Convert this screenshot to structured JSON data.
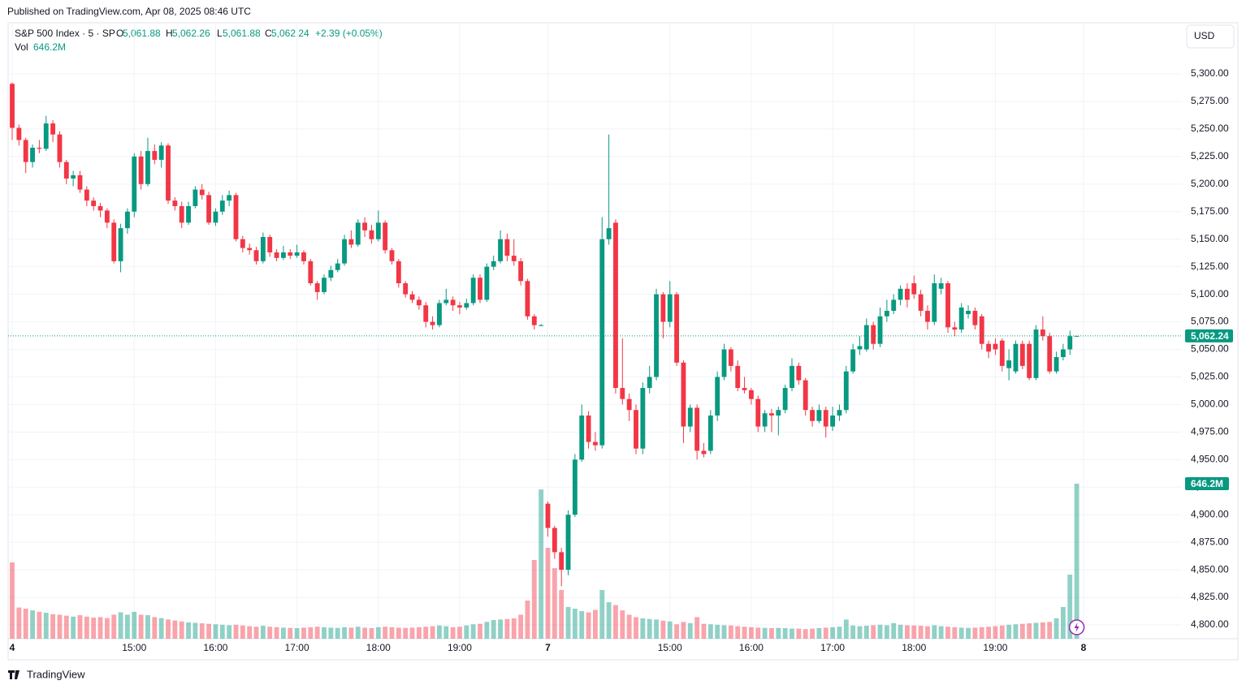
{
  "published": "Published on TradingView.com, Apr 08, 2025 08:46 UTC",
  "brand": "TradingView",
  "currency": "USD",
  "chart_data": {
    "type": "candlestick",
    "legend": {
      "symbol": "S&P 500 Index · 5 · SP",
      "open_key": "O",
      "open": "5,061.88",
      "high_key": "H",
      "high": "5,062.26",
      "low_key": "L",
      "low": "5,061.88",
      "close_key": "C",
      "close": "5,062.24",
      "change": "+2.39 (+0.05%)",
      "vol_name": "Vol",
      "vol": "646.2M"
    },
    "last_price_label": "5,062.24",
    "last_volume_label": "646.2M",
    "up_color": "#089981",
    "down_color": "#f23645",
    "grid": true,
    "xlim": [
      -0.6,
      172.5
    ],
    "xticks": [
      {
        "value": 0,
        "label": "4"
      },
      {
        "value": 18,
        "label": "15:00"
      },
      {
        "value": 30,
        "label": "16:00"
      },
      {
        "value": 42,
        "label": "17:00"
      },
      {
        "value": 54,
        "label": "18:00"
      },
      {
        "value": 66,
        "label": "19:00"
      },
      {
        "value": 79,
        "label": "7"
      },
      {
        "value": 97,
        "label": "15:00"
      },
      {
        "value": 109,
        "label": "16:00"
      },
      {
        "value": 121,
        "label": "17:00"
      },
      {
        "value": 133,
        "label": "18:00"
      },
      {
        "value": 145,
        "label": "19:00"
      },
      {
        "value": 158,
        "label": "8"
      }
    ],
    "ylim": [
      4787.5,
      5346.4
    ],
    "yticks": [
      {
        "value": 4800,
        "label": "4,800.00"
      },
      {
        "value": 4825,
        "label": "4,825.00"
      },
      {
        "value": 4850,
        "label": "4,850.00"
      },
      {
        "value": 4875,
        "label": "4,875.00"
      },
      {
        "value": 4900,
        "label": "4,900.00"
      },
      {
        "value": 4925,
        "label": "4,925.00"
      },
      {
        "value": 4950,
        "label": "4,950.00"
      },
      {
        "value": 4975,
        "label": "4,975.00"
      },
      {
        "value": 5000,
        "label": "5,000.00"
      },
      {
        "value": 5025,
        "label": "5,025.00"
      },
      {
        "value": 5050,
        "label": "5,050.00"
      },
      {
        "value": 5075,
        "label": "5,075.00"
      },
      {
        "value": 5100,
        "label": "5,100.00"
      },
      {
        "value": 5125,
        "label": "5,125.00"
      },
      {
        "value": 5150,
        "label": "5,150.00"
      },
      {
        "value": 5175,
        "label": "5,175.00"
      },
      {
        "value": 5200,
        "label": "5,200.00"
      },
      {
        "value": 5225,
        "label": "5,225.00"
      },
      {
        "value": 5250,
        "label": "5,250.00"
      },
      {
        "value": 5275,
        "label": "5,275.00"
      },
      {
        "value": 5300,
        "label": "5,300.00"
      }
    ],
    "y2lim": [
      0,
      2568
    ],
    "open": [
      5291,
      5251,
      5240,
      5220,
      5233,
      5232,
      5255,
      5245,
      5220,
      5205,
      5208,
      5195,
      5185,
      5180,
      5176,
      5165,
      5130,
      5160,
      5175,
      5225,
      5200,
      5230,
      5222,
      5235,
      5185,
      5180,
      5165,
      5180,
      5195,
      5190,
      5165,
      5175,
      5185,
      5190,
      5150,
      5142,
      5140,
      5130,
      5152,
      5138,
      5133,
      5138,
      5135,
      5138,
      5130,
      5110,
      5102,
      5115,
      5122,
      5128,
      5150,
      5145,
      5165,
      5158,
      5150,
      5165,
      5140,
      5130,
      5110,
      5100,
      5095,
      5090,
      5075,
      5072,
      5092,
      5095,
      5090,
      5088,
      5092,
      5115,
      5095,
      5125,
      5130,
      5150,
      5135,
      5130,
      5112,
      5080,
      5072,
      4910,
      4888,
      4866,
      4850,
      4900,
      4950,
      4990,
      4966,
      4963,
      5150,
      5165,
      5015,
      5005,
      4995,
      4960,
      5015,
      5025,
      5100,
      5075,
      5100,
      5038,
      4980,
      4997,
      4958,
      4958,
      4990,
      5025,
      5050,
      5035,
      5015,
      5013,
      5005,
      4980,
      4992,
      4990,
      4995,
      5015,
      5035,
      5022,
      4995,
      4985,
      4995,
      4980,
      4990,
      4995,
      5030,
      5050,
      5050,
      5072,
      5055,
      5080,
      5085,
      5095,
      5105,
      5110,
      5100,
      5085,
      5075,
      5105,
      5110,
      5070,
      5068,
      5082,
      5085,
      5080,
      5055,
      5055,
      5058,
      5033,
      5030,
      5055,
      5055,
      5024,
      5068,
      5062,
      5030,
      5043,
      5050,
      5061.88
    ],
    "high": [
      5292,
      5254,
      5242,
      5236,
      5240,
      5262,
      5258,
      5248,
      5222,
      5212,
      5212,
      5198,
      5188,
      5183,
      5178,
      5168,
      5164,
      5178,
      5228,
      5230,
      5242,
      5236,
      5238,
      5237,
      5188,
      5184,
      5184,
      5198,
      5200,
      5193,
      5178,
      5190,
      5194,
      5192,
      5153,
      5146,
      5143,
      5156,
      5154,
      5141,
      5144,
      5141,
      5145,
      5140,
      5132,
      5112,
      5118,
      5126,
      5132,
      5154,
      5158,
      5168,
      5170,
      5163,
      5176,
      5167,
      5142,
      5132,
      5112,
      5103,
      5098,
      5093,
      5080,
      5095,
      5105,
      5098,
      5093,
      5096,
      5118,
      5118,
      5128,
      5135,
      5158,
      5155,
      5150,
      5133,
      5114,
      5082,
      5073,
      4912,
      4890,
      4870,
      4904,
      4955,
      5000,
      4994,
      4975,
      5170,
      5245,
      5168,
      5060,
      5010,
      5000,
      5020,
      5035,
      5105,
      5102,
      5112,
      5102,
      5040,
      5000,
      5000,
      4965,
      4995,
      5030,
      5055,
      5052,
      5040,
      5025,
      5015,
      5008,
      4995,
      4996,
      4998,
      5018,
      5042,
      5038,
      5024,
      4998,
      5000,
      4998,
      4998,
      5000,
      5035,
      5055,
      5062,
      5078,
      5075,
      5088,
      5095,
      5100,
      5108,
      5110,
      5117,
      5104,
      5090,
      5118,
      5115,
      5112,
      5075,
      5092,
      5090,
      5088,
      5082,
      5058,
      5060,
      5060,
      5050,
      5058,
      5058,
      5058,
      5072,
      5080,
      5065,
      5048,
      5055,
      5067,
      5062.26
    ],
    "low": [
      5240,
      5235,
      5210,
      5215,
      5228,
      5230,
      5238,
      5215,
      5200,
      5198,
      5192,
      5180,
      5176,
      5170,
      5160,
      5128,
      5120,
      5155,
      5170,
      5195,
      5198,
      5218,
      5215,
      5182,
      5176,
      5160,
      5163,
      5178,
      5186,
      5163,
      5162,
      5172,
      5180,
      5148,
      5138,
      5136,
      5127,
      5128,
      5134,
      5130,
      5131,
      5132,
      5133,
      5127,
      5108,
      5095,
      5100,
      5112,
      5120,
      5126,
      5142,
      5143,
      5152,
      5146,
      5148,
      5137,
      5127,
      5106,
      5097,
      5092,
      5086,
      5070,
      5068,
      5070,
      5090,
      5085,
      5082,
      5086,
      5090,
      5092,
      5093,
      5122,
      5128,
      5130,
      5126,
      5108,
      5077,
      5068,
      5071,
      4880,
      4860,
      4835,
      4845,
      4898,
      4948,
      4960,
      4958,
      4960,
      5145,
      5010,
      5000,
      4985,
      4955,
      4955,
      5010,
      5022,
      5060,
      5070,
      5035,
      4965,
      4975,
      4950,
      4952,
      4955,
      4985,
      5022,
      5030,
      5012,
      5010,
      5000,
      4975,
      4975,
      4975,
      4972,
      4992,
      5012,
      5018,
      4990,
      4980,
      4983,
      4970,
      4976,
      4985,
      4992,
      5028,
      5045,
      5048,
      5050,
      5052,
      5075,
      5082,
      5090,
      5088,
      5096,
      5080,
      5068,
      5072,
      5100,
      5065,
      5062,
      5065,
      5078,
      5068,
      5050,
      5042,
      5045,
      5030,
      5022,
      5028,
      5032,
      5022,
      5022,
      5058,
      5028,
      5028,
      5040,
      5045,
      5061.88
    ],
    "close": [
      5251,
      5240,
      5220,
      5233,
      5232,
      5255,
      5245,
      5220,
      5205,
      5208,
      5195,
      5185,
      5180,
      5176,
      5165,
      5130,
      5160,
      5175,
      5225,
      5200,
      5230,
      5222,
      5235,
      5185,
      5180,
      5165,
      5180,
      5195,
      5190,
      5165,
      5175,
      5185,
      5190,
      5150,
      5142,
      5140,
      5130,
      5152,
      5138,
      5133,
      5138,
      5135,
      5138,
      5130,
      5110,
      5102,
      5115,
      5122,
      5128,
      5150,
      5145,
      5165,
      5158,
      5150,
      5165,
      5140,
      5130,
      5110,
      5100,
      5095,
      5090,
      5075,
      5072,
      5092,
      5095,
      5090,
      5088,
      5092,
      5115,
      5095,
      5125,
      5130,
      5150,
      5135,
      5130,
      5112,
      5080,
      5072,
      5072,
      4888,
      4866,
      4850,
      4900,
      4950,
      4990,
      4966,
      4963,
      5150,
      5160,
      5015,
      5005,
      4995,
      4960,
      5015,
      5025,
      5100,
      5075,
      5100,
      5038,
      4980,
      4997,
      4958,
      4955,
      4990,
      5025,
      5050,
      5035,
      5015,
      5013,
      5005,
      4980,
      4992,
      4990,
      4995,
      5015,
      5035,
      5022,
      4995,
      4985,
      4995,
      4980,
      4990,
      4995,
      5030,
      5050,
      5053,
      5072,
      5055,
      5080,
      5085,
      5095,
      5105,
      5095,
      5100,
      5085,
      5075,
      5110,
      5110,
      5070,
      5068,
      5088,
      5085,
      5072,
      5055,
      5048,
      5050,
      5035,
      5040,
      5055,
      5035,
      5024,
      5068,
      5062,
      5030,
      5043,
      5050,
      5062,
      5062.24
    ],
    "volume": [
      318,
      130,
      125,
      118,
      112,
      108,
      102,
      100,
      96,
      92,
      98,
      92,
      88,
      90,
      86,
      100,
      110,
      100,
      112,
      100,
      98,
      90,
      86,
      80,
      76,
      72,
      68,
      66,
      64,
      62,
      60,
      58,
      56,
      58,
      55,
      52,
      50,
      54,
      50,
      48,
      46,
      45,
      44,
      46,
      48,
      50,
      48,
      46,
      45,
      48,
      46,
      50,
      46,
      44,
      48,
      50,
      48,
      46,
      45,
      46,
      48,
      50,
      52,
      55,
      52,
      48,
      50,
      55,
      60,
      62,
      70,
      78,
      80,
      82,
      85,
      100,
      159,
      328,
      622,
      379,
      294,
      203,
      132,
      125,
      115,
      110,
      120,
      203,
      152,
      140,
      118,
      100,
      90,
      85,
      82,
      80,
      75,
      72,
      60,
      70,
      65,
      90,
      62,
      60,
      58,
      56,
      55,
      52,
      50,
      48,
      46,
      45,
      44,
      45,
      44,
      42,
      42,
      40,
      42,
      44,
      46,
      48,
      50,
      80,
      55,
      52,
      54,
      56,
      58,
      56,
      65,
      58,
      56,
      55,
      54,
      52,
      56,
      52,
      50,
      48,
      46,
      45,
      46,
      48,
      50,
      52,
      55,
      58,
      60,
      62,
      64,
      66,
      68,
      70,
      85,
      132,
      267,
      646.2
    ]
  }
}
